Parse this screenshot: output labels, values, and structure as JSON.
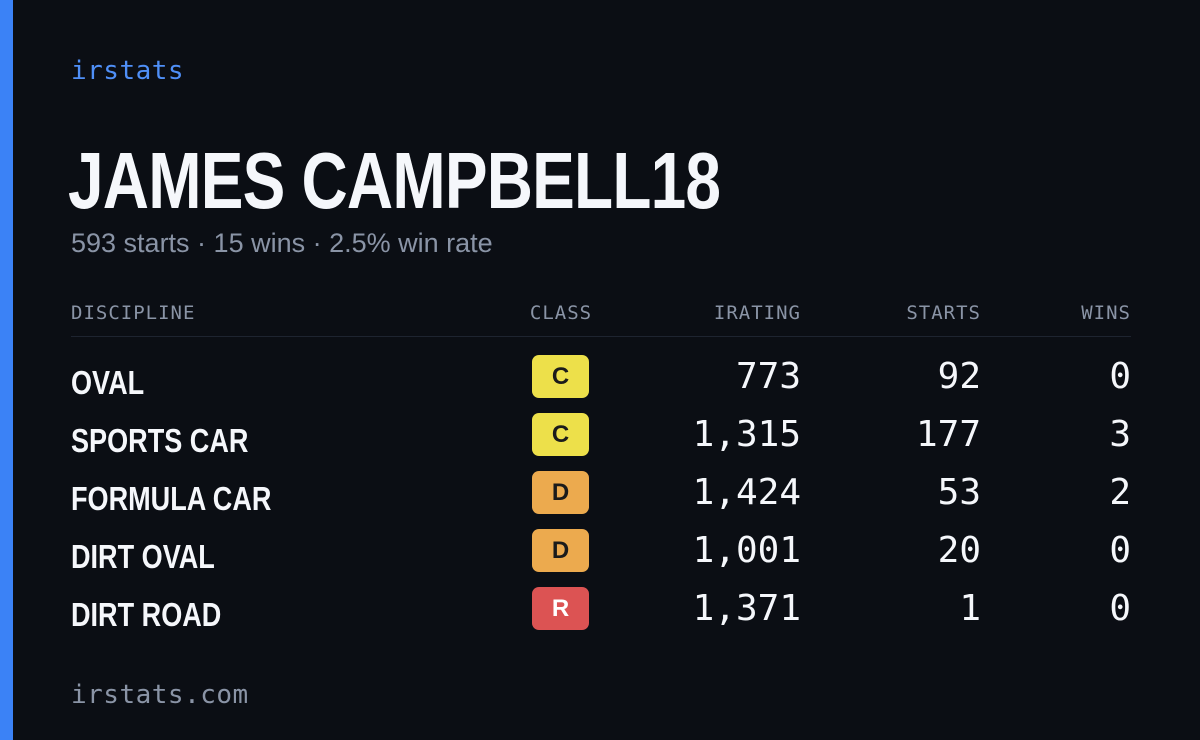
{
  "brand": "irstats",
  "driver": {
    "name": "JAMES CAMPBELL18",
    "summary": "593 starts · 15 wins · 2.5% win rate"
  },
  "table": {
    "headers": {
      "discipline": "DISCIPLINE",
      "class": "CLASS",
      "irating": "IRATING",
      "starts": "STARTS",
      "wins": "WINS"
    },
    "rows": [
      {
        "discipline": "OVAL",
        "class": "C",
        "irating": "773",
        "starts": "92",
        "wins": "0"
      },
      {
        "discipline": "SPORTS CAR",
        "class": "C",
        "irating": "1,315",
        "starts": "177",
        "wins": "3"
      },
      {
        "discipline": "FORMULA CAR",
        "class": "D",
        "irating": "1,424",
        "starts": "53",
        "wins": "2"
      },
      {
        "discipline": "DIRT OVAL",
        "class": "D",
        "irating": "1,001",
        "starts": "20",
        "wins": "0"
      },
      {
        "discipline": "DIRT ROAD",
        "class": "R",
        "irating": "1,371",
        "starts": "1",
        "wins": "0"
      }
    ]
  },
  "colors": {
    "accent": "#3b82f6",
    "background": "#0b0e14",
    "class_C": "#ede04a",
    "class_D": "#ecaa4e",
    "class_R": "#dc5353"
  },
  "footer": "irstats.com"
}
